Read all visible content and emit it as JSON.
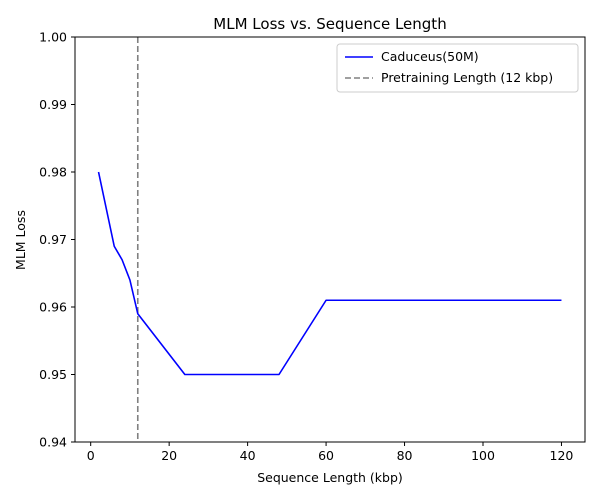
{
  "chart_data": {
    "type": "line",
    "title": "MLM Loss vs. Sequence Length",
    "xlabel": "Sequence Length (kbp)",
    "ylabel": "MLM Loss",
    "xlim": [
      -4,
      126
    ],
    "ylim": [
      0.94,
      1.0
    ],
    "xticks": [
      0,
      20,
      40,
      60,
      80,
      100,
      120
    ],
    "xtick_labels": [
      "0",
      "20",
      "40",
      "60",
      "80",
      "100",
      "120"
    ],
    "yticks": [
      0.94,
      0.95,
      0.96,
      0.97,
      0.98,
      0.99,
      1.0
    ],
    "ytick_labels": [
      "0.94",
      "0.95",
      "0.96",
      "0.97",
      "0.98",
      "0.99",
      "1.00"
    ],
    "grid": false,
    "legend_position": "top-right",
    "series": [
      {
        "name": "Caduceus(50M)",
        "color": "#0000ff",
        "style": "solid",
        "x": [
          2,
          6,
          8,
          10,
          12,
          24,
          48,
          60,
          120
        ],
        "y": [
          0.98,
          0.969,
          0.967,
          0.964,
          0.959,
          0.95,
          0.95,
          0.961,
          0.961
        ]
      }
    ],
    "reference_lines": [
      {
        "name": "Pretraining Length (12 kbp)",
        "orientation": "vertical",
        "x": 12,
        "color": "#808080",
        "style": "dashed"
      }
    ]
  }
}
